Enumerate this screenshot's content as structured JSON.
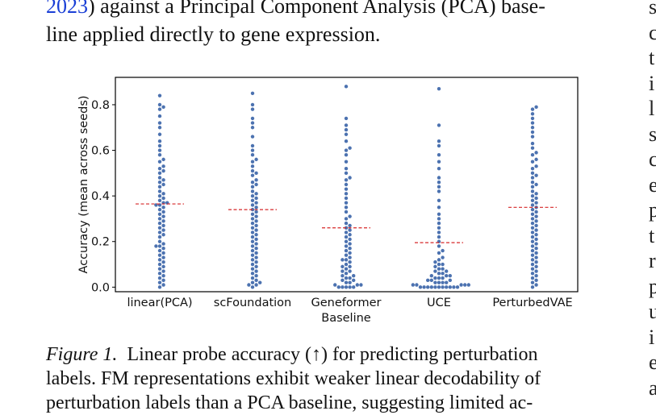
{
  "body_text": {
    "line1_cite": "2023",
    "line1_rest": ") against a Principal Component Analysis (PCA) base-",
    "line2": "line applied directly to gene expression."
  },
  "right_column_fragments": [
    "s",
    "c",
    "t",
    "i",
    "l",
    "s",
    "c",
    "e",
    "p",
    "t",
    "r",
    "p",
    "u",
    "i",
    "e",
    "a"
  ],
  "caption": {
    "label": "Figure 1.",
    "line1": "Linear probe accuracy (↑) for predicting perturbation",
    "line2": "labels. FM representations exhibit weaker linear decodability of",
    "line3": "perturbation labels than a PCA baseline, suggesting limited ac-"
  },
  "chart_data": {
    "type": "scatter",
    "subtype": "swarm",
    "xlabel": "Baseline",
    "ylabel": "Accuracy (mean across seeds)",
    "ylim": [
      -0.02,
      0.92
    ],
    "yticks": [
      0.0,
      0.2,
      0.4,
      0.6,
      0.8
    ],
    "ytick_labels": [
      "0.0",
      "0.2",
      "0.4",
      "0.6",
      "0.8"
    ],
    "categories": [
      "linear(PCA)",
      "scFoundation",
      "Geneformer",
      "UCE",
      "PerturbedVAE"
    ],
    "point_color": "#4c72b0",
    "mean_line_color": "#d62728",
    "means": [
      0.365,
      0.34,
      0.26,
      0.195,
      0.35
    ],
    "series": [
      {
        "values": [
          0.84,
          0.8,
          0.79,
          0.78,
          0.75,
          0.72,
          0.7,
          0.67,
          0.64,
          0.62,
          0.6,
          0.58,
          0.56,
          0.55,
          0.53,
          0.52,
          0.51,
          0.5,
          0.48,
          0.47,
          0.46,
          0.45,
          0.44,
          0.42,
          0.41,
          0.4,
          0.39,
          0.38,
          0.37,
          0.37,
          0.36,
          0.36,
          0.35,
          0.34,
          0.33,
          0.32,
          0.31,
          0.3,
          0.29,
          0.28,
          0.27,
          0.26,
          0.25,
          0.24,
          0.23,
          0.22,
          0.2,
          0.19,
          0.18,
          0.18,
          0.17,
          0.16,
          0.15,
          0.14,
          0.13,
          0.12,
          0.11,
          0.1,
          0.09,
          0.08,
          0.07,
          0.06,
          0.05,
          0.04,
          0.03,
          0.02,
          0.01,
          0.0
        ]
      },
      {
        "values": [
          0.85,
          0.8,
          0.78,
          0.74,
          0.72,
          0.7,
          0.66,
          0.62,
          0.6,
          0.58,
          0.56,
          0.55,
          0.53,
          0.51,
          0.5,
          0.49,
          0.47,
          0.46,
          0.45,
          0.44,
          0.42,
          0.41,
          0.4,
          0.39,
          0.38,
          0.37,
          0.36,
          0.35,
          0.34,
          0.33,
          0.32,
          0.31,
          0.3,
          0.29,
          0.28,
          0.27,
          0.26,
          0.25,
          0.24,
          0.23,
          0.22,
          0.21,
          0.2,
          0.19,
          0.18,
          0.17,
          0.16,
          0.15,
          0.14,
          0.13,
          0.12,
          0.11,
          0.1,
          0.09,
          0.08,
          0.07,
          0.06,
          0.05,
          0.04,
          0.03,
          0.02,
          0.02,
          0.01,
          0.01,
          0.0
        ]
      },
      {
        "values": [
          0.88,
          0.74,
          0.71,
          0.69,
          0.67,
          0.64,
          0.61,
          0.6,
          0.58,
          0.55,
          0.52,
          0.5,
          0.48,
          0.47,
          0.45,
          0.43,
          0.41,
          0.39,
          0.37,
          0.35,
          0.33,
          0.31,
          0.3,
          0.28,
          0.27,
          0.26,
          0.25,
          0.24,
          0.23,
          0.22,
          0.21,
          0.2,
          0.19,
          0.18,
          0.17,
          0.16,
          0.15,
          0.14,
          0.13,
          0.12,
          0.12,
          0.11,
          0.1,
          0.09,
          0.09,
          0.08,
          0.07,
          0.07,
          0.06,
          0.05,
          0.05,
          0.04,
          0.04,
          0.03,
          0.03,
          0.02,
          0.02,
          0.01,
          0.01,
          0.01,
          0.0,
          0.0,
          0.0,
          0.0,
          0.0
        ]
      },
      {
        "values": [
          0.87,
          0.71,
          0.64,
          0.62,
          0.58,
          0.55,
          0.52,
          0.48,
          0.46,
          0.44,
          0.42,
          0.38,
          0.35,
          0.32,
          0.3,
          0.28,
          0.26,
          0.24,
          0.22,
          0.2,
          0.18,
          0.16,
          0.15,
          0.13,
          0.12,
          0.11,
          0.1,
          0.1,
          0.09,
          0.08,
          0.08,
          0.07,
          0.07,
          0.06,
          0.06,
          0.05,
          0.05,
          0.05,
          0.04,
          0.04,
          0.04,
          0.03,
          0.03,
          0.03,
          0.02,
          0.02,
          0.02,
          0.02,
          0.01,
          0.01,
          0.01,
          0.01,
          0.01,
          0.0,
          0.0,
          0.0,
          0.0,
          0.0,
          0.0,
          0.0,
          0.0,
          0.0,
          0.0,
          0.0
        ]
      },
      {
        "values": [
          0.79,
          0.78,
          0.76,
          0.74,
          0.72,
          0.7,
          0.68,
          0.66,
          0.63,
          0.61,
          0.59,
          0.58,
          0.56,
          0.55,
          0.53,
          0.52,
          0.5,
          0.49,
          0.48,
          0.46,
          0.45,
          0.44,
          0.42,
          0.41,
          0.4,
          0.39,
          0.38,
          0.37,
          0.36,
          0.35,
          0.34,
          0.33,
          0.32,
          0.31,
          0.3,
          0.29,
          0.28,
          0.27,
          0.26,
          0.25,
          0.24,
          0.23,
          0.22,
          0.21,
          0.2,
          0.19,
          0.18,
          0.17,
          0.16,
          0.15,
          0.14,
          0.13,
          0.12,
          0.11,
          0.1,
          0.09,
          0.08,
          0.07,
          0.06,
          0.05,
          0.04,
          0.03,
          0.02,
          0.01,
          0.0
        ]
      }
    ]
  }
}
